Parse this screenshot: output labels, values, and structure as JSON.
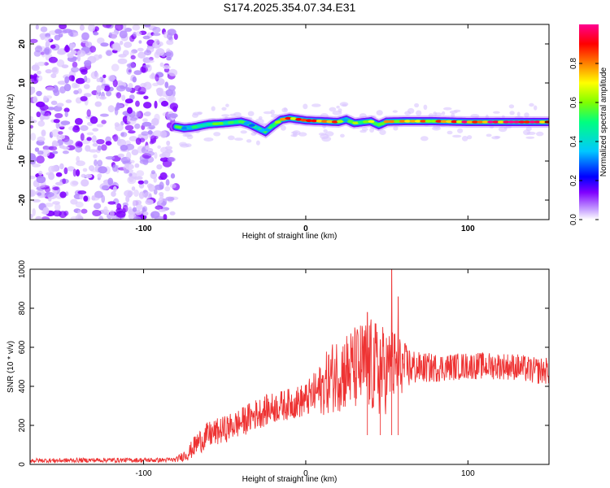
{
  "title": "S174.2025.354.07.34.E31",
  "chart_data": [
    {
      "type": "heatmap",
      "title": "S174.2025.354.07.34.E31",
      "xlabel": "Height of straight line (km)",
      "ylabel": "Frequency (Hz)",
      "xlim": [
        -170,
        150
      ],
      "ylim": [
        -25,
        25
      ],
      "xticks": [
        -100,
        0,
        100
      ],
      "yticks": [
        20,
        10,
        0,
        -10,
        -20
      ],
      "colorbar": {
        "label": "Normalized spectral amplitude",
        "range": [
          0,
          1
        ],
        "ticks": [
          0.0,
          0.2,
          0.4,
          0.6,
          0.8
        ],
        "colors": [
          "#ffffff",
          "#c8a4ff",
          "#7f00ff",
          "#0000ff",
          "#00c8ff",
          "#00ff80",
          "#80ff00",
          "#ffff00",
          "#ff8000",
          "#ff0000",
          "#ff0090"
        ]
      },
      "noise_region_km": [
        -170,
        -80
      ],
      "ridge": {
        "x_km": [
          -80,
          -75,
          -70,
          -60,
          -50,
          -40,
          -35,
          -30,
          -25,
          -20,
          -15,
          -10,
          0,
          10,
          20,
          25,
          30,
          40,
          45,
          50,
          60,
          80,
          100,
          120,
          150
        ],
        "freq_hz": [
          -1.2,
          -1.6,
          -1.4,
          -0.6,
          -0.3,
          0.1,
          -0.5,
          -1.5,
          -2.5,
          -0.8,
          0.6,
          1.0,
          0.4,
          0.2,
          0.0,
          0.6,
          -0.3,
          0.2,
          -0.8,
          0.1,
          0.2,
          0.2,
          0.0,
          0.0,
          0.0
        ],
        "peak_amplitude": [
          0.6,
          0.45,
          0.5,
          0.5,
          0.6,
          0.55,
          0.35,
          0.4,
          0.35,
          0.55,
          0.8,
          0.85,
          0.9,
          0.85,
          0.8,
          0.45,
          0.6,
          0.65,
          0.45,
          0.75,
          0.8,
          0.8,
          0.9,
          0.95,
          0.95
        ]
      }
    },
    {
      "type": "line",
      "title": "",
      "xlabel": "Height of straight line (km)",
      "ylabel": "SNR (10 * v/v)",
      "xlim": [
        -170,
        150
      ],
      "ylim": [
        0,
        1000
      ],
      "xticks": [
        -100,
        0,
        100
      ],
      "yticks": [
        0,
        200,
        400,
        600,
        800,
        1000
      ],
      "color": "#ee3333",
      "series": [
        {
          "name": "SNR",
          "x": [
            -170,
            -150,
            -130,
            -110,
            -90,
            -80,
            -72,
            -67,
            -60,
            -50,
            -40,
            -30,
            -20,
            -10,
            0,
            5,
            10,
            15,
            20,
            25,
            30,
            35,
            40,
            45,
            50,
            55,
            60,
            70,
            80,
            90,
            100,
            110,
            120,
            130,
            140,
            150
          ],
          "y": [
            20,
            20,
            22,
            22,
            22,
            24,
            60,
            110,
            150,
            180,
            215,
            260,
            290,
            310,
            330,
            360,
            390,
            440,
            470,
            480,
            490,
            500,
            500,
            480,
            480,
            500,
            500,
            495,
            495,
            500,
            505,
            505,
            505,
            500,
            480,
            480
          ],
          "noise_amplitude": [
            12,
            12,
            12,
            12,
            12,
            12,
            40,
            60,
            70,
            70,
            75,
            80,
            80,
            80,
            90,
            110,
            140,
            180,
            200,
            210,
            220,
            240,
            250,
            250,
            220,
            200,
            130,
            80,
            75,
            70,
            70,
            70,
            70,
            70,
            70,
            70
          ],
          "annotated_peaks": [
            {
              "x": 38,
              "y": 780
            },
            {
              "x": 46,
              "y": 640
            },
            {
              "x": 53,
              "y": 1000
            },
            {
              "x": 57,
              "y": 860
            }
          ]
        }
      ]
    }
  ]
}
